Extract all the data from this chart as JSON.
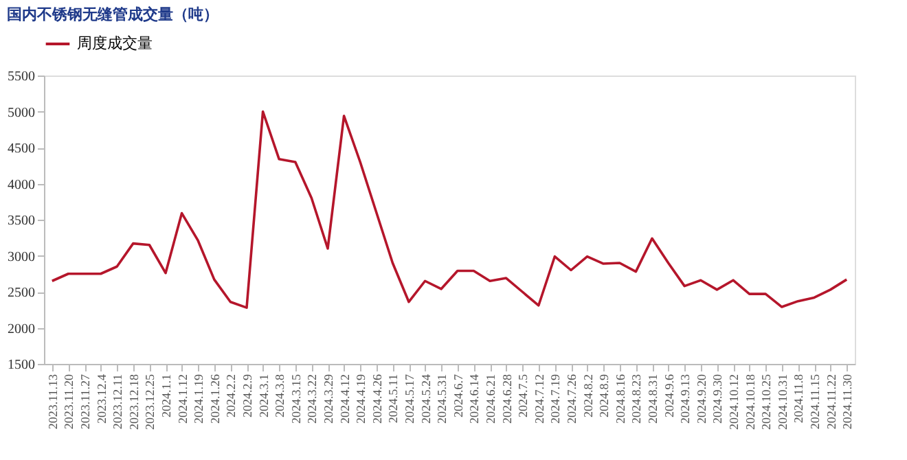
{
  "chart_data": {
    "type": "line",
    "title": "国内不锈钢无缝管成交量（吨）",
    "categories": [
      "2023.11.13",
      "2023.11.20",
      "2023.11.27",
      "2023.12.4",
      "2023.12.11",
      "2023.12.18",
      "2023.12.25",
      "2024.1.1",
      "2024.1.12",
      "2024.1.19",
      "2024.1.26",
      "2024.2.2",
      "2024.2.9",
      "2024.3.1",
      "2024.3.8",
      "2024.3.15",
      "2024.3.22",
      "2024.3.29",
      "2024.4.12",
      "2024.4.19",
      "2024.4.26",
      "2024.5.11",
      "2024.5.17",
      "2024.5.24",
      "2024.5.31",
      "2024.6.7",
      "2024.6.14",
      "2024.6.21",
      "2024.6.28",
      "2024.7.5",
      "2024.7.12",
      "2024.7.19",
      "2024.7.26",
      "2024.8.2",
      "2024.8.9",
      "2024.8.16",
      "2024.8.23",
      "2024.8.31",
      "2024.9.6",
      "2024.9.13",
      "2024.9.20",
      "2024.9.30",
      "2024.10.12",
      "2024.10.18",
      "2024.10.25",
      "2024.10.31",
      "2024.11.8",
      "2024.11.15",
      "2024.11.22",
      "2024.11.30"
    ],
    "series": [
      {
        "name": "周度成交量",
        "color": "#b5162b",
        "values": [
          2650,
          2750,
          2750,
          2750,
          2850,
          3170,
          3150,
          2760,
          3590,
          3210,
          2670,
          2360,
          2280,
          5000,
          4340,
          4300,
          3800,
          3100,
          4940,
          4300,
          3600,
          2900,
          2360,
          2650,
          2540,
          2790,
          2790,
          2650,
          2690,
          2500,
          2310,
          2990,
          2800,
          2990,
          2890,
          2900,
          2780,
          3240,
          2900,
          2580,
          2660,
          2530,
          2660,
          2470,
          2470,
          2290,
          2370,
          2420,
          2530,
          2670
        ]
      }
    ],
    "ylim": [
      1500,
      5500
    ],
    "yticks": [
      1500,
      2000,
      2500,
      3000,
      3500,
      4000,
      4500,
      5000,
      5500
    ],
    "grid": false,
    "legend": "top",
    "marker": "none",
    "line_style": "solid"
  }
}
